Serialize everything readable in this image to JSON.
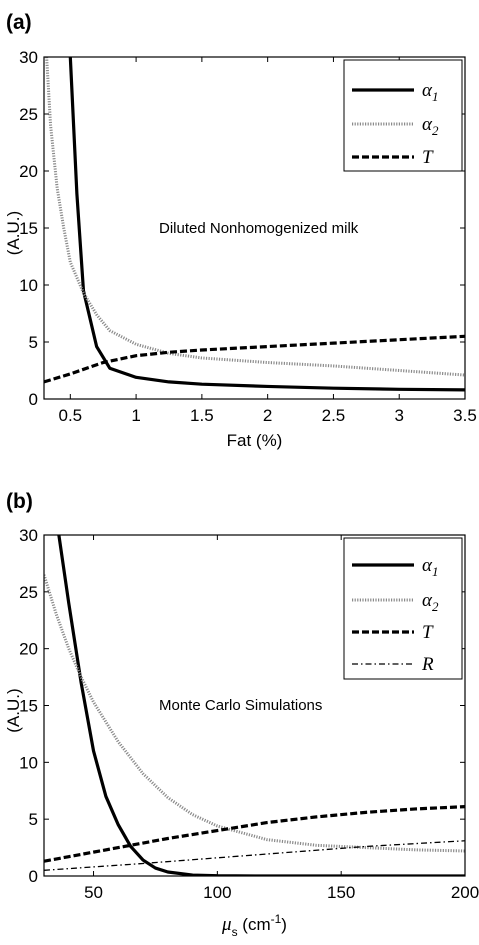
{
  "chart_data": [
    {
      "type": "line",
      "panel_label": "(a)",
      "title": "",
      "xlabel": "Fat (%)",
      "ylabel": "(A.U.)",
      "annotation": "Diluted  Nonhomogenized milk",
      "xlim": [
        0.3,
        3.5
      ],
      "ylim": [
        0,
        30
      ],
      "xticks": [
        "0.5",
        "1",
        "1.5",
        "2",
        "2.5",
        "3",
        "3.5"
      ],
      "yticks": [
        "0",
        "5",
        "10",
        "15",
        "20",
        "25",
        "30"
      ],
      "grid": false,
      "legend_position": "top-right",
      "series": [
        {
          "name": "α",
          "subscript": "1",
          "style": "solid",
          "x": [
            0.5,
            0.55,
            0.6,
            0.7,
            0.8,
            1.0,
            1.25,
            1.5,
            2.0,
            2.5,
            3.0,
            3.5
          ],
          "y": [
            30,
            18,
            9.5,
            4.6,
            2.7,
            1.9,
            1.5,
            1.3,
            1.1,
            0.95,
            0.85,
            0.8
          ]
        },
        {
          "name": "α",
          "subscript": "2",
          "style": "dotted",
          "x": [
            0.32,
            0.35,
            0.4,
            0.45,
            0.5,
            0.6,
            0.7,
            0.8,
            1.0,
            1.25,
            1.5,
            2.0,
            2.5,
            3.0,
            3.5
          ],
          "y": [
            30,
            24,
            18.5,
            15,
            12,
            9.3,
            7.4,
            6.0,
            4.8,
            4.0,
            3.6,
            3.2,
            2.9,
            2.5,
            2.1
          ]
        },
        {
          "name": "T",
          "subscript": "",
          "style": "dashed",
          "x": [
            0.3,
            0.5,
            0.75,
            1.0,
            1.25,
            1.5,
            1.75,
            2.0,
            2.5,
            3.0,
            3.5
          ],
          "y": [
            1.5,
            2.2,
            3.2,
            3.8,
            4.1,
            4.3,
            4.45,
            4.6,
            4.9,
            5.2,
            5.5
          ]
        }
      ]
    },
    {
      "type": "line",
      "panel_label": "(b)",
      "title": "",
      "xlabel": "μ",
      "xlabel_sub": "s",
      "xlabel_unit": " (cm",
      "xlabel_sup": "-1",
      "xlabel_end": ")",
      "ylabel": "(A.U.)",
      "annotation": "Monte Carlo Simulations",
      "xlim": [
        30,
        200
      ],
      "ylim": [
        0,
        30
      ],
      "xticks": [
        "50",
        "100",
        "150",
        "200"
      ],
      "yticks": [
        "0",
        "5",
        "10",
        "15",
        "20",
        "25",
        "30"
      ],
      "grid": false,
      "legend_position": "top-right",
      "series": [
        {
          "name": "α",
          "subscript": "1",
          "style": "solid",
          "x": [
            36,
            40,
            45,
            50,
            55,
            60,
            65,
            70,
            75,
            80,
            90,
            100,
            120,
            150,
            200
          ],
          "y": [
            30,
            24,
            17,
            11,
            7,
            4.5,
            2.6,
            1.4,
            0.7,
            0.35,
            0.08,
            0.02,
            0,
            0,
            0
          ]
        },
        {
          "name": "α",
          "subscript": "2",
          "style": "dotted",
          "x": [
            30,
            35,
            40,
            45,
            50,
            60,
            70,
            80,
            90,
            100,
            120,
            140,
            160,
            180,
            200
          ],
          "y": [
            26.5,
            23,
            20,
            17.5,
            15.3,
            11.8,
            9.0,
            6.9,
            5.4,
            4.4,
            3.2,
            2.7,
            2.5,
            2.3,
            2.2
          ]
        },
        {
          "name": "T",
          "subscript": "",
          "style": "dashed",
          "x": [
            30,
            40,
            50,
            60,
            70,
            80,
            100,
            120,
            140,
            160,
            180,
            200
          ],
          "y": [
            1.3,
            1.7,
            2.1,
            2.5,
            2.9,
            3.3,
            4.0,
            4.7,
            5.2,
            5.6,
            5.9,
            6.1
          ]
        },
        {
          "name": "R",
          "subscript": "",
          "style": "dashdot",
          "x": [
            30,
            50,
            70,
            100,
            130,
            160,
            200
          ],
          "y": [
            0.5,
            0.8,
            1.1,
            1.6,
            2.1,
            2.6,
            3.1
          ]
        }
      ]
    }
  ]
}
